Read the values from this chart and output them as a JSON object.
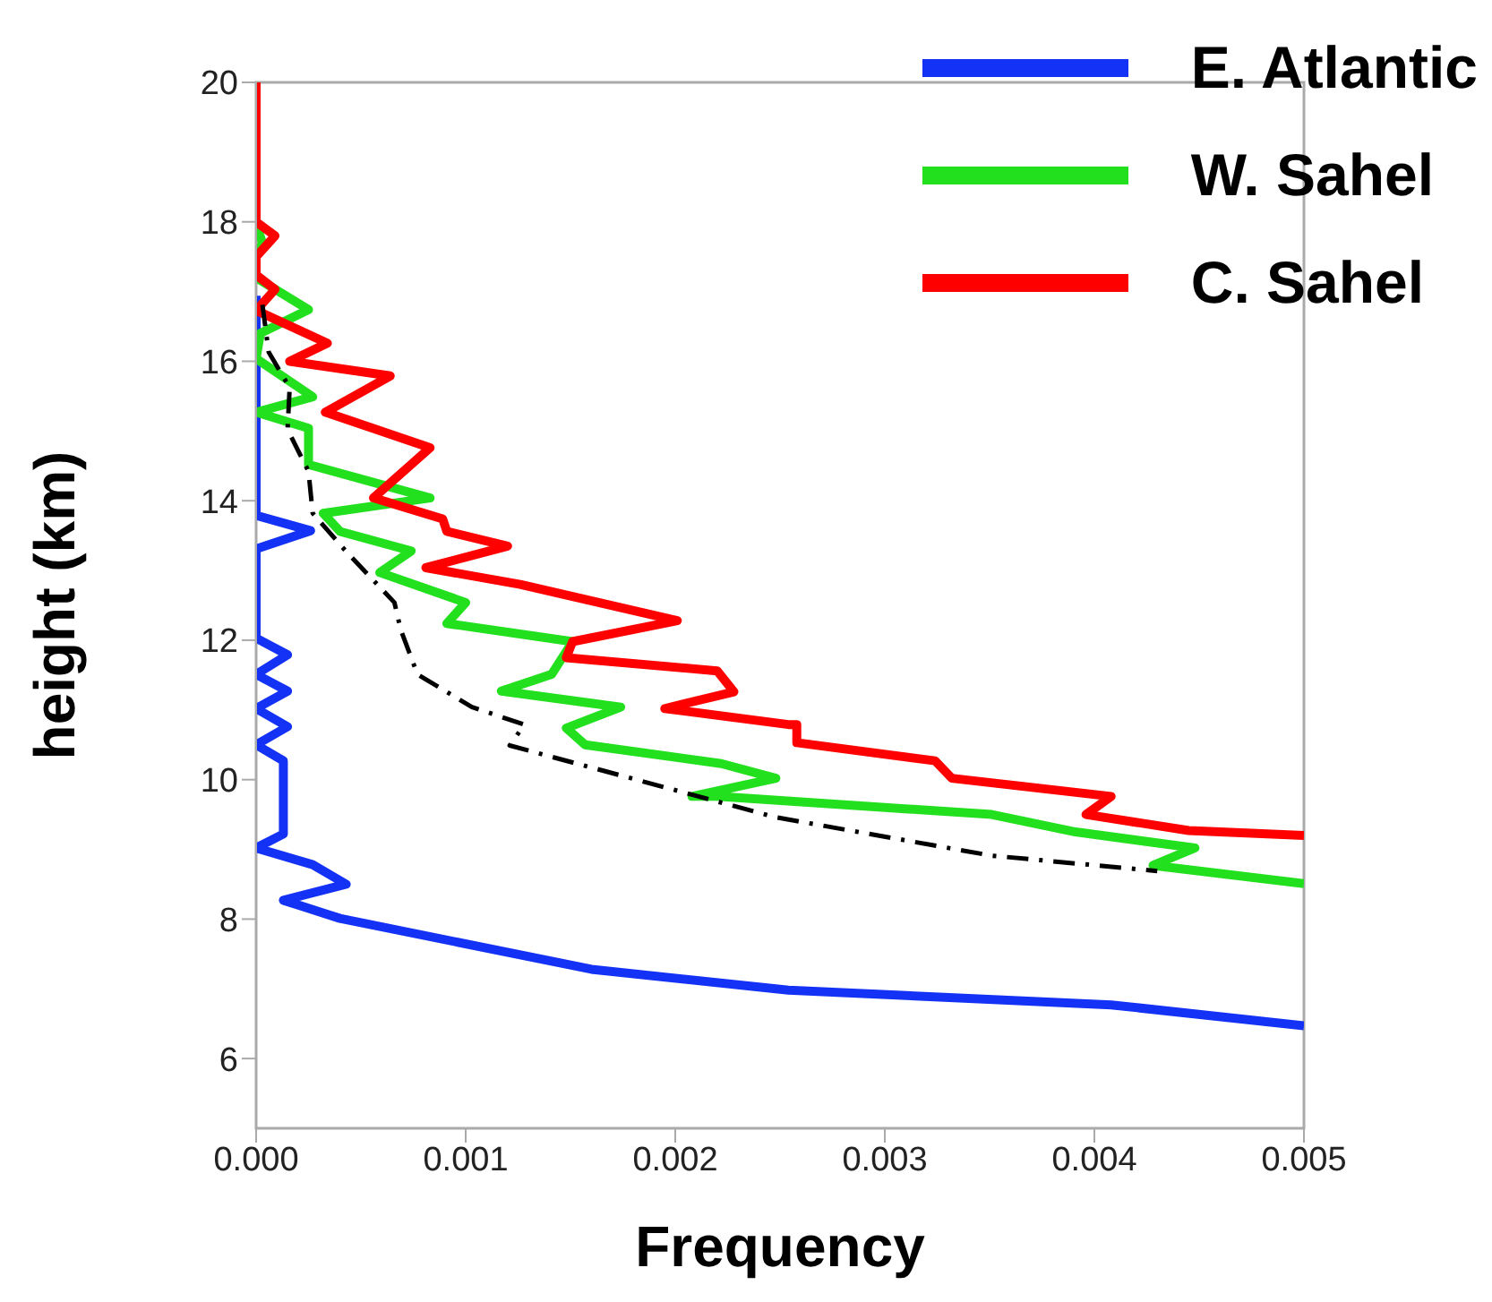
{
  "chart_data": {
    "type": "line",
    "xlabel": "Frequency",
    "ylabel": "height (km)",
    "xlim": [
      0,
      0.005
    ],
    "ylim": [
      5,
      20
    ],
    "xticks": [
      {
        "value": 0,
        "label": "0.000"
      },
      0.001,
      0.002,
      0.003,
      0.004,
      0.005
    ],
    "yticks": [
      6,
      8,
      10,
      12,
      14,
      16,
      18,
      20
    ],
    "legend": "top right",
    "series": [
      {
        "name": "E. Atlantic",
        "color": "#1432f5",
        "x": [
          0,
          0,
          0.00026,
          0,
          0,
          0.00015,
          0,
          0.00015,
          0,
          0.00015,
          0,
          0.00013,
          0.00013,
          0,
          0.00027,
          0.00043,
          0.00013,
          0.0004,
          0.0016,
          0.00254,
          0.00408,
          0.005
        ],
        "values": [
          16.94,
          13.79,
          13.57,
          13.31,
          12.03,
          11.79,
          11.51,
          11.27,
          11.02,
          10.76,
          10.5,
          10.27,
          9.22,
          9.02,
          8.78,
          8.5,
          8.27,
          8.01,
          7.28,
          6.98,
          6.77,
          6.47
        ]
      },
      {
        "name": "W. Sahel",
        "color": "#22e01e",
        "x": [
          0,
          3e-05,
          0,
          0,
          0.00025,
          2e-05,
          0,
          0.00027,
          0,
          0.00025,
          0.00025,
          0.00083,
          0.00032,
          0.0004,
          0.00074,
          0.00059,
          0.001,
          0.00091,
          0.00151,
          0.00141,
          0.00117,
          0.00174,
          0.00148,
          0.00157,
          0.00222,
          0.00248,
          0.00208,
          0.0022,
          0.00351,
          0.00391,
          0.00448,
          0.00428,
          0.005
        ],
        "values": [
          17.97,
          17.7,
          17.5,
          17.2,
          16.74,
          16.4,
          16.04,
          15.49,
          15.27,
          15.04,
          14.52,
          14.04,
          13.82,
          13.56,
          13.28,
          12.97,
          12.54,
          12.24,
          11.98,
          11.51,
          11.27,
          11.04,
          10.74,
          10.5,
          10.23,
          10.02,
          9.76,
          9.76,
          9.5,
          9.25,
          9.02,
          8.77,
          8.51
        ]
      },
      {
        "name": "C. Sahel",
        "color": "#ff0000",
        "x": [
          0,
          0,
          9e-05,
          0,
          0,
          9e-05,
          0,
          0.00034,
          0.00016,
          0.00064,
          0.00033,
          0.00083,
          0.00056,
          0.00089,
          0.00091,
          0.0012,
          0.00081,
          0.00126,
          0.00201,
          0.00151,
          0.00148,
          0.0022,
          0.00228,
          0.00195,
          0.00254,
          0.00258,
          0.00258,
          0.00324,
          0.00332,
          0.00408,
          0.00396,
          0.00445,
          0.005
        ],
        "values": [
          20,
          18,
          17.8,
          17.5,
          17.24,
          17.03,
          16.73,
          16.26,
          16,
          15.79,
          15.27,
          14.76,
          14.04,
          13.74,
          13.56,
          13.35,
          13.04,
          12.8,
          12.28,
          11.98,
          11.75,
          11.56,
          11.26,
          11.02,
          10.79,
          10.79,
          10.53,
          10.27,
          10.02,
          9.76,
          9.5,
          9.27,
          9.2
        ]
      },
      {
        "color": "#000000",
        "line_style": "dashed",
        "x": [
          3e-05,
          6e-05,
          0.00016,
          0.00015,
          0.00025,
          0.00027,
          0.00043,
          0.00066,
          0.00069,
          0.00077,
          0.00103,
          0.00128,
          0.00121,
          0.00248,
          0.00351,
          0.0043
        ],
        "values": [
          16.81,
          16.13,
          15.62,
          15.02,
          14.42,
          13.82,
          13.27,
          12.54,
          12.15,
          11.51,
          11.04,
          10.79,
          10.49,
          9.46,
          8.91,
          8.69
        ]
      }
    ]
  }
}
